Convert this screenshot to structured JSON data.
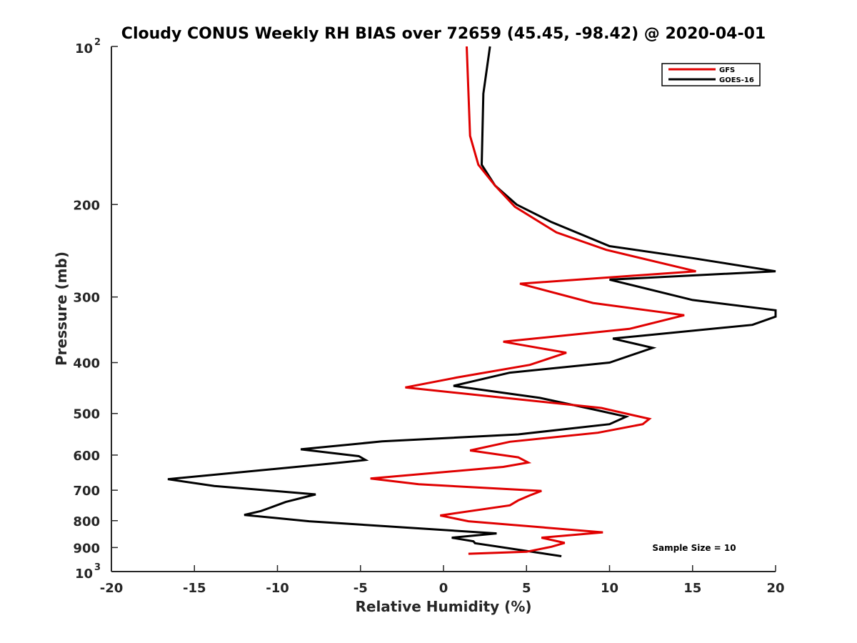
{
  "chart_data": {
    "type": "line",
    "title": "Cloudy CONUS Weekly RH BIAS over 72659 (45.45, -98.42) @ 2020-04-01",
    "xlabel": "Relative Humidity (%)",
    "ylabel": "Pressure (mb)",
    "xlim": [
      -20,
      20
    ],
    "ylim": [
      100,
      1000
    ],
    "yscale": "log",
    "y_reversed": true,
    "x_ticks": [
      "-20",
      "-15",
      "-10",
      "-5",
      "0",
      "5",
      "10",
      "15",
      "20"
    ],
    "y_ticks": [
      {
        "value": 100,
        "base": "10",
        "exp": "2"
      },
      {
        "value": 200,
        "label": "200"
      },
      {
        "value": 300,
        "label": "300"
      },
      {
        "value": 400,
        "label": "400"
      },
      {
        "value": 500,
        "label": "500"
      },
      {
        "value": 600,
        "label": "600"
      },
      {
        "value": 700,
        "label": "700"
      },
      {
        "value": 800,
        "label": "800"
      },
      {
        "value": 900,
        "label": "900"
      },
      {
        "value": 1000,
        "base": "10",
        "exp": "3"
      }
    ],
    "legend_position": "top-right",
    "grid": false,
    "annotation": "Sample Size = 10",
    "series": [
      {
        "name": "GFS",
        "color": "#e00000",
        "x": [
          1.4,
          1.6,
          2.1,
          3.1,
          4.3,
          6.8,
          9.8,
          15.2,
          4.6,
          9.0,
          14.5,
          11.2,
          3.6,
          7.4,
          5.2,
          0.8,
          -2.3,
          9.5,
          12.4,
          12.0,
          9.3,
          4.0,
          1.6,
          4.5,
          5.1,
          3.6,
          -4.4,
          -1.5,
          5.9,
          5.2,
          4.5,
          4.0,
          -0.2,
          1.5,
          9.6,
          5.9,
          7.3,
          6.5,
          5.0,
          1.5
        ],
        "y": [
          100,
          148,
          168,
          184,
          202,
          226,
          244,
          268,
          283,
          308,
          325,
          345,
          365,
          383,
          404,
          427,
          446,
          488,
          512,
          524,
          544,
          566,
          588,
          606,
          620,
          632,
          665,
          682,
          702,
          716,
          732,
          748,
          782,
          802,
          842,
          862,
          882,
          897,
          917,
          925
        ]
      },
      {
        "name": "GOES-16",
        "color": "#000000",
        "x": [
          2.8,
          2.4,
          2.3,
          3.1,
          4.4,
          6.5,
          10.0,
          15.0,
          20.0,
          10.0,
          15.0,
          20.0,
          20.0,
          18.6,
          10.2,
          12.6,
          10.0,
          4.0,
          0.6,
          5.8,
          9.0,
          11.0,
          10.0,
          4.5,
          -3.7,
          -8.6,
          -5.1,
          -4.7,
          -6.8,
          -16.6,
          -13.8,
          -7.7,
          -9.5,
          -10.5,
          -11.0,
          -12.0,
          -8.1,
          3.2,
          0.5,
          1.8,
          1.9,
          7.1
        ],
        "y": [
          100,
          123,
          168,
          184,
          200,
          216,
          240,
          253,
          268,
          278,
          304,
          318,
          327,
          339,
          360,
          375,
          400,
          418,
          443,
          467,
          491,
          507,
          524,
          548,
          565,
          585,
          603,
          613,
          623,
          667,
          687,
          713,
          737,
          757,
          767,
          780,
          802,
          846,
          862,
          876,
          883,
          935
        ]
      }
    ]
  }
}
